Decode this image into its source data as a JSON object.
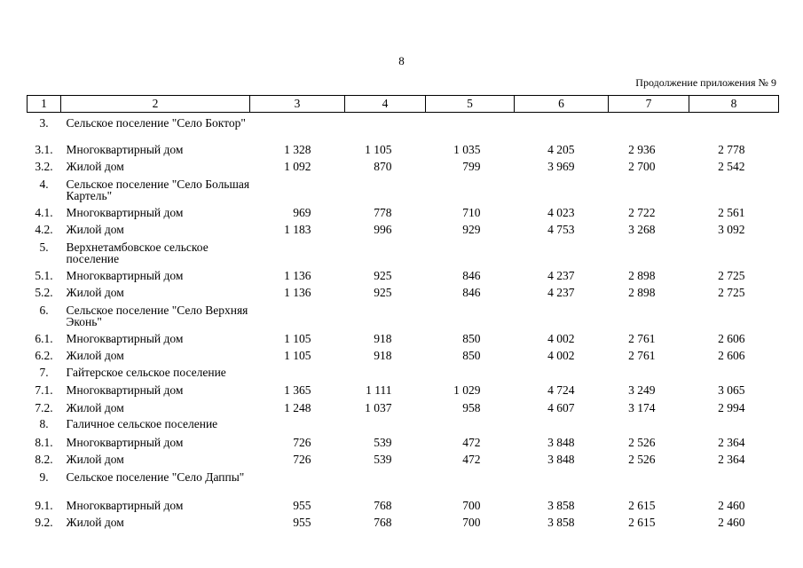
{
  "page_number": "8",
  "appendix_label": "Продолжение приложения № 9",
  "columns": [
    "1",
    "2",
    "3",
    "4",
    "5",
    "6",
    "7",
    "8"
  ],
  "rows": [
    {
      "type": "section",
      "num": "3.",
      "name": "Сельское поселение \"Село Боктор\""
    },
    {
      "type": "item",
      "num": "3.1.",
      "name": "Многоквартирный дом",
      "values": [
        "1 328",
        "1 105",
        "1 035",
        "4 205",
        "2 936",
        "2 778"
      ]
    },
    {
      "type": "item",
      "num": "3.2.",
      "name": "Жилой дом",
      "values": [
        "1 092",
        "870",
        "799",
        "3 969",
        "2 700",
        "2 542"
      ]
    },
    {
      "type": "section",
      "num": "4.",
      "name": "Сельское поселение \"Село Большая Картель\""
    },
    {
      "type": "item",
      "num": "4.1.",
      "name": "Многоквартирный дом",
      "values": [
        "969",
        "778",
        "710",
        "4 023",
        "2 722",
        "2 561"
      ]
    },
    {
      "type": "item",
      "num": "4.2.",
      "name": "Жилой дом",
      "values": [
        "1 183",
        "996",
        "929",
        "4 753",
        "3 268",
        "3 092"
      ]
    },
    {
      "type": "section",
      "num": "5.",
      "name": "Верхнетамбовское сельское поселение"
    },
    {
      "type": "item",
      "num": "5.1.",
      "name": "Многоквартирный дом",
      "values": [
        "1 136",
        "925",
        "846",
        "4 237",
        "2 898",
        "2 725"
      ]
    },
    {
      "type": "item",
      "num": "5.2.",
      "name": "Жилой дом",
      "values": [
        "1 136",
        "925",
        "846",
        "4 237",
        "2 898",
        "2 725"
      ]
    },
    {
      "type": "section",
      "num": "6.",
      "name": "Сельское поселение \"Село Верхняя Эконь\""
    },
    {
      "type": "item",
      "num": "6.1.",
      "name": "Многоквартирный дом",
      "values": [
        "1 105",
        "918",
        "850",
        "4 002",
        "2 761",
        "2 606"
      ]
    },
    {
      "type": "item",
      "num": "6.2.",
      "name": "Жилой дом",
      "values": [
        "1 105",
        "918",
        "850",
        "4 002",
        "2 761",
        "2 606"
      ]
    },
    {
      "type": "section-single",
      "num": "7.",
      "name": "Гайтерское сельское поселение"
    },
    {
      "type": "item",
      "num": "7.1.",
      "name": "Многоквартирный дом",
      "values": [
        "1 365",
        "1 111",
        "1 029",
        "4 724",
        "3 249",
        "3 065"
      ]
    },
    {
      "type": "item",
      "num": "7.2.",
      "name": "Жилой дом",
      "values": [
        "1 248",
        "1 037",
        "958",
        "4 607",
        "3 174",
        "2 994"
      ]
    },
    {
      "type": "section-single",
      "num": "8.",
      "name": "Галичное сельское поселение"
    },
    {
      "type": "item",
      "num": "8.1.",
      "name": "Многоквартирный дом",
      "values": [
        "726",
        "539",
        "472",
        "3 848",
        "2 526",
        "2 364"
      ]
    },
    {
      "type": "item",
      "num": "8.2.",
      "name": "Жилой дом",
      "values": [
        "726",
        "539",
        "472",
        "3 848",
        "2 526",
        "2 364"
      ]
    },
    {
      "type": "section",
      "num": "9.",
      "name": "Сельское поселение \"Село Даппы\""
    },
    {
      "type": "item",
      "num": "9.1.",
      "name": "Многоквартирный дом",
      "values": [
        "955",
        "768",
        "700",
        "3 858",
        "2 615",
        "2 460"
      ]
    },
    {
      "type": "item",
      "num": "9.2.",
      "name": "Жилой дом",
      "values": [
        "955",
        "768",
        "700",
        "3 858",
        "2 615",
        "2 460"
      ]
    }
  ]
}
